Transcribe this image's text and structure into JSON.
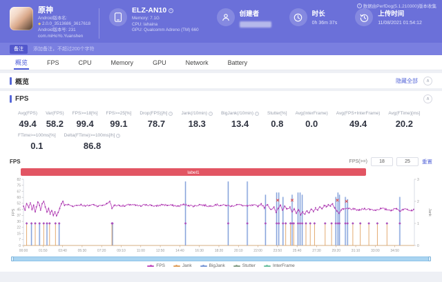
{
  "header": {
    "version_note": "数据由PerfDog(5.1.210300)版本收集",
    "app": {
      "name": "原神",
      "version_name_label": "Android版本名:",
      "version_name": "2.0.0_3513686_3617618",
      "version_code": "Android版本号: 231",
      "package": "com.miHoYo.Yuanshen"
    },
    "device": {
      "model": "ELZ-AN10",
      "memory": "Memory: 7.1G",
      "cpu": "CPU: lahaina",
      "gpu": "GPU: Qualcomm Adreno (TM) 660"
    },
    "creator": {
      "label": "创建者"
    },
    "duration": {
      "label": "时长",
      "value": "0h 36m 37s"
    },
    "upload": {
      "label": "上传时间",
      "value": "11/08/2021 01:54:12"
    }
  },
  "note_bar": {
    "badge": "备注",
    "placeholder": "添加备注，不超过200个字符"
  },
  "tabs": [
    "概览",
    "FPS",
    "CPU",
    "Memory",
    "GPU",
    "Network",
    "Battery"
  ],
  "active_tab": 0,
  "overview": {
    "title": "概览",
    "hide_all": "隐藏全部"
  },
  "icons": {
    "collapse": "∧",
    "info": "i"
  },
  "fps_section": {
    "title": "FPS",
    "chart_title": "FPS",
    "threshold": {
      "label": "FPS(>=)",
      "low": "18",
      "high": "25",
      "reset": "重置"
    },
    "stats_rows": [
      [
        {
          "label": "Avg(FPS)",
          "value": "49.4",
          "info": false
        },
        {
          "label": "Var(FPS)",
          "value": "58.2",
          "info": false
        },
        {
          "label": "FPS>=18[%]",
          "value": "99.4",
          "info": false
        },
        {
          "label": "FPS>=25[%]",
          "value": "99.1",
          "info": false
        },
        {
          "label": "Drop(FPS)[/h]",
          "value": "78.7",
          "info": true
        },
        {
          "label": "Jank(/10min)",
          "value": "18.3",
          "info": true
        },
        {
          "label": "BigJank(/10min)",
          "value": "13.4",
          "info": true
        },
        {
          "label": "Stutter[%]",
          "value": "0.8",
          "info": false
        },
        {
          "label": "Avg(InterFrame)",
          "value": "0.0",
          "info": false
        },
        {
          "label": "Avg(FPS+InterFrame)",
          "value": "49.4",
          "info": false
        },
        {
          "label": "Avg(FTime)[ms]",
          "value": "20.2",
          "info": false
        }
      ],
      [
        {
          "label": "FTime>=100ms[%]",
          "value": "0.1",
          "info": false
        },
        {
          "label": "Delta(FTime)>=100ms[/h]",
          "value": "86.8",
          "info": true
        }
      ]
    ]
  },
  "chart_data": {
    "type": "line",
    "title": "FPS",
    "label_band": {
      "text": "label1",
      "color": "#e25563"
    },
    "left_axis": {
      "label": "FPS",
      "ticks": [
        0,
        7,
        15,
        22,
        30,
        37,
        45,
        52,
        60,
        67,
        75,
        82
      ],
      "max": 82.5
    },
    "right_axis": {
      "label": "Jank",
      "ticks": [
        0,
        1,
        2,
        3
      ],
      "max": 3
    },
    "x_ticks": [
      "00:00",
      "01:50",
      "03:40",
      "05:30",
      "07:20",
      "09:10",
      "11:00",
      "12:50",
      "14:40",
      "16:30",
      "18:20",
      "20:10",
      "22:00",
      "23:50",
      "25:40",
      "27:30",
      "29:20",
      "31:10",
      "33:00",
      "34:50"
    ],
    "x_max_minutes": 36.67,
    "legend_position": "bottom",
    "series": [
      {
        "name": "FPS",
        "color": "#bf4ebf",
        "keypoints": [
          [
            0,
            49
          ],
          [
            0.15,
            44
          ],
          [
            0.3,
            52
          ],
          [
            0.5,
            47
          ],
          [
            0.65,
            53
          ],
          [
            0.8,
            45
          ],
          [
            0.95,
            50
          ],
          [
            1.1,
            42
          ],
          [
            1.2,
            48
          ],
          [
            1.35,
            54
          ],
          [
            1.5,
            50
          ],
          [
            1.6,
            44
          ],
          [
            1.75,
            52
          ],
          [
            1.9,
            55
          ],
          [
            2.05,
            48
          ],
          [
            2.2,
            42
          ],
          [
            2.35,
            46
          ],
          [
            2.5,
            39
          ],
          [
            2.65,
            43
          ],
          [
            2.8,
            38
          ],
          [
            2.95,
            42
          ],
          [
            3.1,
            37
          ],
          [
            3.25,
            41
          ],
          [
            3.4,
            46
          ],
          [
            3.55,
            52
          ],
          [
            3.7,
            55
          ],
          [
            3.85,
            50
          ],
          [
            4.2,
            51
          ],
          [
            4.6,
            49
          ],
          [
            5,
            50
          ],
          [
            5.4,
            51
          ],
          [
            5.8,
            49
          ],
          [
            6.2,
            50
          ],
          [
            6.6,
            51
          ],
          [
            7,
            49
          ],
          [
            7.4,
            50
          ],
          [
            7.8,
            52
          ],
          [
            8.1,
            55
          ],
          [
            8.3,
            46
          ],
          [
            8.5,
            50
          ],
          [
            9,
            50
          ],
          [
            9.5,
            49
          ],
          [
            10,
            51
          ],
          [
            10.5,
            50
          ],
          [
            11,
            49
          ],
          [
            11.5,
            51
          ],
          [
            12,
            50
          ],
          [
            12.5,
            49
          ],
          [
            13,
            51
          ],
          [
            13.5,
            50
          ],
          [
            14,
            50
          ],
          [
            14.5,
            49
          ],
          [
            15,
            51
          ],
          [
            15.5,
            50
          ],
          [
            16,
            49
          ],
          [
            16.5,
            51
          ],
          [
            17,
            50
          ],
          [
            17.5,
            49
          ],
          [
            18,
            51
          ],
          [
            18.5,
            50
          ],
          [
            19,
            50
          ],
          [
            19.5,
            49
          ],
          [
            20,
            51
          ],
          [
            20.5,
            50
          ],
          [
            21,
            49
          ],
          [
            21.5,
            50
          ],
          [
            22,
            49
          ],
          [
            22.3,
            52
          ],
          [
            22.6,
            47
          ],
          [
            22.9,
            51
          ],
          [
            23.2,
            45
          ],
          [
            23.5,
            48
          ],
          [
            23.7,
            41
          ],
          [
            23.9,
            46
          ],
          [
            24.1,
            50
          ],
          [
            24.3,
            44
          ],
          [
            24.5,
            49
          ],
          [
            24.7,
            46
          ],
          [
            25,
            48
          ],
          [
            25.2,
            42
          ],
          [
            25.4,
            45
          ],
          [
            25.6,
            40
          ],
          [
            25.8,
            44
          ],
          [
            26,
            38
          ],
          [
            26.2,
            42
          ],
          [
            26.4,
            39
          ],
          [
            26.6,
            43
          ],
          [
            26.8,
            41
          ],
          [
            27,
            45
          ],
          [
            27.2,
            42
          ],
          [
            27.4,
            47
          ],
          [
            27.6,
            44
          ],
          [
            27.8,
            48
          ],
          [
            28,
            46
          ],
          [
            28.2,
            50
          ],
          [
            28.4,
            48
          ],
          [
            28.6,
            51
          ],
          [
            28.8,
            49
          ],
          [
            29,
            52
          ],
          [
            29.2,
            47
          ],
          [
            29.4,
            43
          ],
          [
            29.6,
            40
          ],
          [
            29.8,
            44
          ],
          [
            30,
            45
          ],
          [
            30.5,
            46
          ],
          [
            31,
            45
          ],
          [
            31.5,
            44
          ],
          [
            32,
            46
          ],
          [
            32.5,
            45
          ],
          [
            33,
            44
          ],
          [
            33.5,
            46
          ],
          [
            34,
            45
          ],
          [
            34.5,
            44
          ],
          [
            35,
            46
          ],
          [
            35.3,
            43
          ],
          [
            35.6,
            45
          ],
          [
            36,
            45
          ],
          [
            36.4,
            44
          ],
          [
            36.6,
            45
          ]
        ]
      },
      {
        "name": "Jank",
        "color": "#e0a160",
        "spikes": [
          [
            0.3,
            1
          ],
          [
            1.1,
            1
          ],
          [
            1.9,
            1
          ],
          [
            2.45,
            1
          ],
          [
            3.0,
            1
          ],
          [
            8.3,
            1
          ],
          [
            24.6,
            1
          ],
          [
            25.05,
            1
          ],
          [
            25.35,
            1
          ],
          [
            26.5,
            1
          ],
          [
            26.9,
            1
          ],
          [
            27.3,
            1
          ],
          [
            28.3,
            1
          ],
          [
            28.9,
            1
          ],
          [
            30.9,
            1
          ],
          [
            31.6,
            1
          ],
          [
            32.4,
            1
          ],
          [
            33.2,
            1
          ],
          [
            34.1,
            1
          ]
        ]
      },
      {
        "name": "BigJank",
        "color": "#7b99d6",
        "spikes": [
          [
            0.75,
            1
          ],
          [
            1.5,
            1
          ],
          [
            2.2,
            1
          ],
          [
            3.35,
            1
          ],
          [
            8.35,
            1
          ],
          [
            15.2,
            2.9
          ],
          [
            19.2,
            2.9
          ],
          [
            21.0,
            2.9
          ],
          [
            22.7,
            2.3
          ],
          [
            23.75,
            2.4
          ],
          [
            23.95,
            2.4
          ],
          [
            24.35,
            2.2
          ],
          [
            25.2,
            2.3
          ],
          [
            25.75,
            2.4
          ],
          [
            25.95,
            2.4
          ],
          [
            26.15,
            2.3
          ],
          [
            29.3,
            2.2
          ],
          [
            29.5,
            2.4
          ],
          [
            29.65,
            2.3
          ],
          [
            30.2,
            2.2
          ],
          [
            30.4,
            2.1
          ],
          [
            35.3,
            2.2
          ]
        ]
      },
      {
        "name": "Stutter",
        "color": "#88a08a",
        "spikes": []
      },
      {
        "name": "InterFrame",
        "color": "#6fc0a0",
        "spikes": []
      }
    ],
    "alert_markers": [
      [
        23.85,
        2.05
      ],
      [
        25.2,
        2.05
      ],
      [
        29.45,
        2.05
      ],
      [
        30.3,
        2.0
      ]
    ]
  }
}
